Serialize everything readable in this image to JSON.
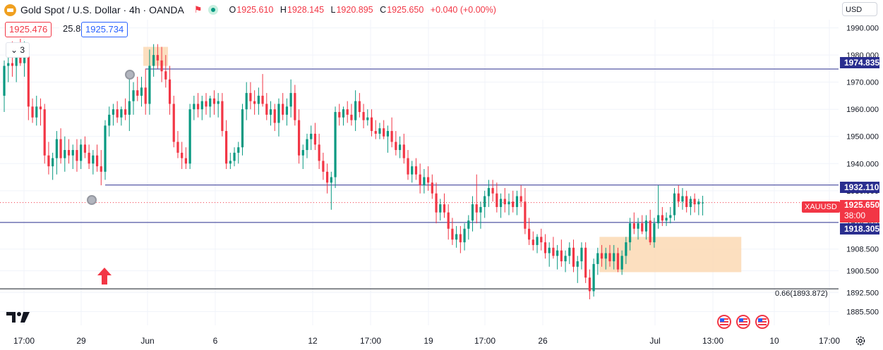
{
  "header": {
    "title": "Gold Spot / U.S. Dollar · 4h · OANDA",
    "ohlc": {
      "open_label": "O",
      "open": "1925.610",
      "high_label": "H",
      "high": "1928.145",
      "low_label": "L",
      "low": "1920.895",
      "close_label": "C",
      "close": "1925.650",
      "change": "+0.040 (+0.00%)"
    },
    "bid": "1925.476",
    "spread": "25.8",
    "ask": "1925.734",
    "collapse_count": "3",
    "currency": "USD"
  },
  "colors": {
    "up": "#089981",
    "down": "#f23645",
    "level_line": "#2a2e8f",
    "zone_fill": "#fbd9b4",
    "grid": "#f0f3fa"
  },
  "icons": [
    "gold-logo-icon",
    "flag-icon",
    "live-dot-icon",
    "chevron-down-icon",
    "alarm-clock-icon",
    "up-arrow-icon",
    "us-flag-event-icon",
    "gear-icon",
    "tradingview-logo-icon"
  ],
  "price_scale": {
    "ticks": [
      "1990.000",
      "1980.000",
      "1970.000",
      "1960.000",
      "1950.000",
      "1940.000",
      "1930.000",
      "1918.305",
      "1908.500",
      "1900.500",
      "1892.500",
      "1885.500"
    ]
  },
  "time_scale": {
    "labels": [
      "17:00",
      "29",
      "Jun",
      "6",
      "12",
      "17:00",
      "19",
      "17:00",
      "26",
      "Jul",
      "13:00",
      "10",
      "17:00"
    ]
  },
  "price_labels": {
    "resistance": "1974.835",
    "support_top": "1932.110",
    "support_mid": "1918.305",
    "symbol": "XAUUSD",
    "current": "1925.650",
    "countdown": "38:00"
  },
  "fib_label": "0.66(1893.872)",
  "chart_data": {
    "type": "candlestick",
    "title": "Gold Spot / U.S. Dollar · 4h · OANDA",
    "xlabel": "",
    "ylabel": "",
    "ylim": [
      1883,
      1993
    ],
    "grid": true,
    "levels": [
      1974.835,
      1932.11,
      1918.305,
      1893.872
    ],
    "zones": [
      {
        "x_from": 35,
        "x_to": 40,
        "y_from": 1976,
        "y_to": 1983
      },
      {
        "x_from": 148,
        "x_to": 182,
        "y_from": 1900,
        "y_to": 1913
      }
    ],
    "candles": [
      [
        1965.0,
        1978.0,
        1959.0,
        1976.0
      ],
      [
        1976.0,
        1980.0,
        1970.0,
        1977.0
      ],
      [
        1977.0,
        1985.0,
        1972.0,
        1976.0
      ],
      [
        1976.0,
        1983.0,
        1970.0,
        1981.0
      ],
      [
        1981.0,
        1986.0,
        1976.0,
        1977.0
      ],
      [
        1977.0,
        1985.0,
        1972.0,
        1983.0
      ],
      [
        1983.0,
        1984.0,
        1956.0,
        1961.0
      ],
      [
        1961.0,
        1964.0,
        1955.0,
        1957.0
      ],
      [
        1957.0,
        1965.0,
        1954.0,
        1961.0
      ],
      [
        1961.0,
        1964.0,
        1954.0,
        1960.0
      ],
      [
        1960.0,
        1962.0,
        1940.0,
        1943.0
      ],
      [
        1943.0,
        1948.0,
        1936.0,
        1939.0
      ],
      [
        1939.0,
        1944.0,
        1934.0,
        1942.0
      ],
      [
        1942.0,
        1952.0,
        1936.0,
        1949.0
      ],
      [
        1949.0,
        1953.0,
        1940.0,
        1942.0
      ],
      [
        1942.0,
        1950.0,
        1937.0,
        1945.0
      ],
      [
        1945.0,
        1949.0,
        1940.0,
        1943.0
      ],
      [
        1943.0,
        1947.0,
        1938.0,
        1945.0
      ],
      [
        1945.0,
        1949.0,
        1937.0,
        1941.0
      ],
      [
        1941.0,
        1949.0,
        1938.0,
        1947.0
      ],
      [
        1947.0,
        1950.0,
        1942.0,
        1944.0
      ],
      [
        1944.0,
        1947.0,
        1938.0,
        1940.0
      ],
      [
        1940.0,
        1945.0,
        1936.0,
        1943.0
      ],
      [
        1943.0,
        1947.0,
        1937.0,
        1939.0
      ],
      [
        1939.0,
        1945.0,
        1932.0,
        1937.0
      ],
      [
        1937.0,
        1956.0,
        1934.0,
        1954.0
      ],
      [
        1954.0,
        1961.0,
        1950.0,
        1958.0
      ],
      [
        1958.0,
        1962.0,
        1954.0,
        1960.0
      ],
      [
        1960.0,
        1963.0,
        1955.0,
        1957.0
      ],
      [
        1957.0,
        1961.0,
        1954.0,
        1960.0
      ],
      [
        1960.0,
        1964.0,
        1956.0,
        1958.0
      ],
      [
        1958.0,
        1974.0,
        1952.0,
        1963.0
      ],
      [
        1963.0,
        1970.0,
        1958.0,
        1967.0
      ],
      [
        1967.0,
        1972.0,
        1963.0,
        1965.0
      ],
      [
        1965.0,
        1972.0,
        1961.0,
        1968.0
      ],
      [
        1968.0,
        1975.0,
        1958.0,
        1962.0
      ],
      [
        1962.0,
        1982.0,
        1958.0,
        1976.0
      ],
      [
        1976.0,
        1984.0,
        1972.0,
        1980.0
      ],
      [
        1980.0,
        1984.0,
        1975.0,
        1978.0
      ],
      [
        1978.0,
        1983.0,
        1970.0,
        1974.0
      ],
      [
        1974.0,
        1980.0,
        1968.0,
        1971.0
      ],
      [
        1971.0,
        1976.0,
        1958.0,
        1962.0
      ],
      [
        1962.0,
        1965.0,
        1946.0,
        1948.0
      ],
      [
        1948.0,
        1952.0,
        1942.0,
        1944.0
      ],
      [
        1944.0,
        1948.0,
        1938.0,
        1942.0
      ],
      [
        1942.0,
        1946.0,
        1938.0,
        1940.0
      ],
      [
        1940.0,
        1962.0,
        1938.0,
        1960.0
      ],
      [
        1960.0,
        1965.0,
        1956.0,
        1962.0
      ],
      [
        1962.0,
        1966.0,
        1957.0,
        1960.0
      ],
      [
        1960.0,
        1965.0,
        1956.0,
        1963.0
      ],
      [
        1963.0,
        1966.0,
        1958.0,
        1961.0
      ],
      [
        1961.0,
        1965.0,
        1957.0,
        1964.0
      ],
      [
        1964.0,
        1967.0,
        1958.0,
        1962.0
      ],
      [
        1962.0,
        1966.0,
        1957.0,
        1963.0
      ],
      [
        1963.0,
        1966.0,
        1950.0,
        1952.0
      ],
      [
        1952.0,
        1956.0,
        1938.0,
        1940.0
      ],
      [
        1940.0,
        1944.0,
        1938.0,
        1941.0
      ],
      [
        1941.0,
        1946.0,
        1939.0,
        1944.0
      ],
      [
        1944.0,
        1948.0,
        1940.0,
        1946.0
      ],
      [
        1946.0,
        1962.0,
        1943.0,
        1960.0
      ],
      [
        1960.0,
        1970.0,
        1956.0,
        1966.0
      ],
      [
        1966.0,
        1970.0,
        1960.0,
        1963.0
      ],
      [
        1963.0,
        1967.0,
        1958.0,
        1962.0
      ],
      [
        1962.0,
        1968.0,
        1958.0,
        1965.0
      ],
      [
        1965.0,
        1973.0,
        1961.0,
        1962.0
      ],
      [
        1962.0,
        1966.0,
        1956.0,
        1958.0
      ],
      [
        1958.0,
        1963.0,
        1954.0,
        1960.0
      ],
      [
        1960.0,
        1962.0,
        1952.0,
        1955.0
      ],
      [
        1955.0,
        1964.0,
        1950.0,
        1962.0
      ],
      [
        1962.0,
        1966.0,
        1956.0,
        1958.0
      ],
      [
        1958.0,
        1964.0,
        1954.0,
        1961.0
      ],
      [
        1961.0,
        1971.0,
        1957.0,
        1966.0
      ],
      [
        1966.0,
        1969.0,
        1954.0,
        1956.0
      ],
      [
        1956.0,
        1960.0,
        1940.0,
        1943.0
      ],
      [
        1943.0,
        1947.0,
        1938.0,
        1945.0
      ],
      [
        1945.0,
        1951.0,
        1942.0,
        1949.0
      ],
      [
        1949.0,
        1954.0,
        1945.0,
        1951.0
      ],
      [
        1951.0,
        1955.0,
        1945.0,
        1947.0
      ],
      [
        1947.0,
        1951.0,
        1938.0,
        1941.0
      ],
      [
        1941.0,
        1944.0,
        1934.0,
        1937.0
      ],
      [
        1937.0,
        1940.0,
        1929.0,
        1933.0
      ],
      [
        1933.0,
        1937.0,
        1923.0,
        1935.0
      ],
      [
        1935.0,
        1961.0,
        1931.0,
        1959.0
      ],
      [
        1959.0,
        1962.0,
        1954.0,
        1957.0
      ],
      [
        1957.0,
        1961.0,
        1954.0,
        1960.0
      ],
      [
        1960.0,
        1963.0,
        1955.0,
        1958.0
      ],
      [
        1958.0,
        1962.0,
        1954.0,
        1956.0
      ],
      [
        1956.0,
        1967.0,
        1952.0,
        1963.0
      ],
      [
        1963.0,
        1966.0,
        1957.0,
        1959.0
      ],
      [
        1959.0,
        1962.0,
        1953.0,
        1956.0
      ],
      [
        1956.0,
        1960.0,
        1954.0,
        1957.0
      ],
      [
        1957.0,
        1960.0,
        1950.0,
        1952.0
      ],
      [
        1952.0,
        1956.0,
        1949.0,
        1951.0
      ],
      [
        1951.0,
        1955.0,
        1949.0,
        1953.0
      ],
      [
        1953.0,
        1956.0,
        1949.0,
        1950.0
      ],
      [
        1950.0,
        1954.0,
        1944.0,
        1952.0
      ],
      [
        1952.0,
        1957.0,
        1946.0,
        1948.0
      ],
      [
        1948.0,
        1952.0,
        1943.0,
        1945.0
      ],
      [
        1945.0,
        1950.0,
        1942.0,
        1947.0
      ],
      [
        1947.0,
        1951.0,
        1940.0,
        1942.0
      ],
      [
        1942.0,
        1945.0,
        1934.0,
        1936.0
      ],
      [
        1936.0,
        1941.0,
        1933.0,
        1939.0
      ],
      [
        1939.0,
        1942.0,
        1934.0,
        1936.0
      ],
      [
        1936.0,
        1940.0,
        1929.0,
        1932.0
      ],
      [
        1932.0,
        1938.0,
        1929.0,
        1935.0
      ],
      [
        1935.0,
        1939.0,
        1930.0,
        1933.0
      ],
      [
        1933.0,
        1936.0,
        1927.0,
        1929.0
      ],
      [
        1929.0,
        1933.0,
        1918.0,
        1922.0
      ],
      [
        1922.0,
        1927.0,
        1919.0,
        1925.0
      ],
      [
        1925.0,
        1929.0,
        1920.0,
        1922.0
      ],
      [
        1922.0,
        1925.0,
        1912.0,
        1916.0
      ],
      [
        1916.0,
        1920.0,
        1910.0,
        1912.0
      ],
      [
        1912.0,
        1917.0,
        1909.0,
        1914.0
      ],
      [
        1914.0,
        1917.0,
        1907.0,
        1911.0
      ],
      [
        1911.0,
        1918.0,
        1908.0,
        1916.0
      ],
      [
        1916.0,
        1921.0,
        1912.0,
        1919.0
      ],
      [
        1919.0,
        1928.0,
        1915.0,
        1925.0
      ],
      [
        1925.0,
        1936.0,
        1918.0,
        1922.0
      ],
      [
        1922.0,
        1926.0,
        1916.0,
        1924.0
      ],
      [
        1924.0,
        1930.0,
        1920.0,
        1928.0
      ],
      [
        1928.0,
        1934.0,
        1924.0,
        1931.0
      ],
      [
        1931.0,
        1934.0,
        1926.0,
        1929.0
      ],
      [
        1929.0,
        1933.0,
        1922.0,
        1924.0
      ],
      [
        1924.0,
        1929.0,
        1920.0,
        1927.0
      ],
      [
        1927.0,
        1931.0,
        1922.0,
        1925.0
      ],
      [
        1925.0,
        1929.0,
        1921.0,
        1926.0
      ],
      [
        1926.0,
        1930.0,
        1922.0,
        1924.0
      ],
      [
        1924.0,
        1930.0,
        1921.0,
        1928.0
      ],
      [
        1928.0,
        1932.0,
        1924.0,
        1926.0
      ],
      [
        1926.0,
        1931.0,
        1914.0,
        1916.0
      ],
      [
        1916.0,
        1920.0,
        1910.0,
        1912.0
      ],
      [
        1912.0,
        1915.0,
        1908.0,
        1910.0
      ],
      [
        1910.0,
        1914.0,
        1907.0,
        1913.0
      ],
      [
        1913.0,
        1916.0,
        1908.0,
        1911.0
      ],
      [
        1911.0,
        1914.0,
        1905.0,
        1907.0
      ],
      [
        1907.0,
        1911.0,
        1902.0,
        1909.0
      ],
      [
        1909.0,
        1913.0,
        1905.0,
        1906.0
      ],
      [
        1906.0,
        1910.0,
        1901.0,
        1908.0
      ],
      [
        1908.0,
        1912.0,
        1902.0,
        1904.0
      ],
      [
        1904.0,
        1908.0,
        1900.0,
        1906.0
      ],
      [
        1906.0,
        1911.0,
        1903.0,
        1909.0
      ],
      [
        1909.0,
        1912.0,
        1900.0,
        1902.0
      ],
      [
        1902.0,
        1906.0,
        1896.0,
        1904.0
      ],
      [
        1904.0,
        1911.0,
        1901.0,
        1909.0
      ],
      [
        1909.0,
        1911.0,
        1896.0,
        1898.0
      ],
      [
        1898.0,
        1901.0,
        1890.0,
        1893.0
      ],
      [
        1893.0,
        1905.0,
        1891.0,
        1903.0
      ],
      [
        1903.0,
        1909.0,
        1899.0,
        1907.0
      ],
      [
        1907.0,
        1910.0,
        1902.0,
        1905.0
      ],
      [
        1905.0,
        1909.0,
        1901.0,
        1907.0
      ],
      [
        1907.0,
        1910.0,
        1902.0,
        1904.0
      ],
      [
        1904.0,
        1910.0,
        1901.0,
        1907.0
      ],
      [
        1907.0,
        1909.0,
        1900.0,
        1901.0
      ],
      [
        1901.0,
        1908.0,
        1899.0,
        1906.0
      ],
      [
        1906.0,
        1913.0,
        1903.0,
        1911.0
      ],
      [
        1911.0,
        1920.0,
        1908.0,
        1918.0
      ],
      [
        1918.0,
        1922.0,
        1914.0,
        1916.0
      ],
      [
        1916.0,
        1920.0,
        1912.0,
        1918.0
      ],
      [
        1918.0,
        1921.0,
        1914.0,
        1915.0
      ],
      [
        1915.0,
        1921.0,
        1912.0,
        1919.0
      ],
      [
        1919.0,
        1923.0,
        1910.0,
        1911.0
      ],
      [
        1911.0,
        1920.0,
        1909.0,
        1918.0
      ],
      [
        1918.0,
        1932.0,
        1916.0,
        1921.0
      ],
      [
        1921.0,
        1924.0,
        1917.0,
        1919.0
      ],
      [
        1919.0,
        1922.0,
        1917.0,
        1920.0
      ],
      [
        1920.0,
        1924.0,
        1918.0,
        1921.0
      ],
      [
        1921.0,
        1931.0,
        1919.0,
        1929.0
      ],
      [
        1929.0,
        1932.0,
        1924.0,
        1926.0
      ],
      [
        1926.0,
        1931.0,
        1923.0,
        1928.0
      ],
      [
        1928.0,
        1930.0,
        1922.0,
        1924.0
      ],
      [
        1924.0,
        1928.0,
        1921.0,
        1927.0
      ],
      [
        1927.0,
        1929.0,
        1922.0,
        1925.0
      ],
      [
        1925.0,
        1927.0,
        1921.0,
        1926.0
      ],
      [
        1925.61,
        1928.145,
        1920.895,
        1925.65
      ]
    ]
  }
}
